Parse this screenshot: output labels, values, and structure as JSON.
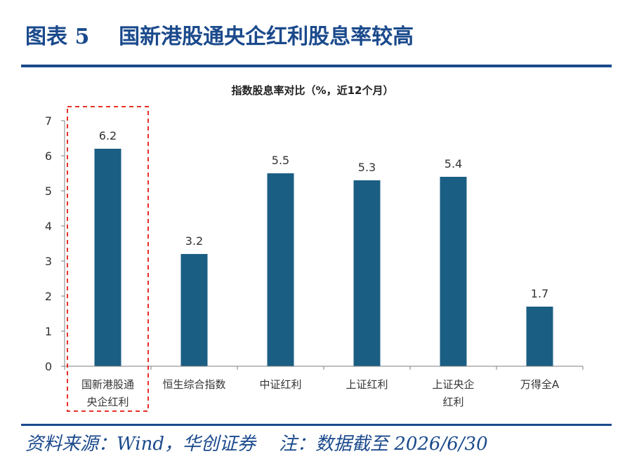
{
  "header": {
    "figure_title": "图表 5    国新港股通央企红利股息率较高"
  },
  "footer": {
    "source_note": "资料来源：Wind，华创证券    注：数据截至 2026/6/30"
  },
  "chart_data": {
    "type": "bar",
    "title": "指数股息率对比（%，近12个月）",
    "categories": [
      [
        "国新港股通",
        "央企红利"
      ],
      [
        "恒生综合指数"
      ],
      [
        "中证红利"
      ],
      [
        "上证红利"
      ],
      [
        "上证央企",
        "红利"
      ],
      [
        "万得全A"
      ]
    ],
    "values": [
      6.2,
      3.2,
      5.5,
      5.3,
      5.4,
      1.7
    ],
    "value_labels": [
      "6.2",
      "3.2",
      "5.5",
      "5.3",
      "5.4",
      "1.7"
    ],
    "ylim": [
      0,
      7
    ],
    "yticks": [
      "0",
      "1",
      "2",
      "3",
      "4",
      "5",
      "6",
      "7"
    ],
    "xlabel": "",
    "ylabel": "",
    "highlight_index": 0,
    "colors": {
      "bar": "#1b5e83",
      "highlight_box": "#e8302a",
      "axis": "#7f7f7f",
      "text": "#333333"
    }
  }
}
